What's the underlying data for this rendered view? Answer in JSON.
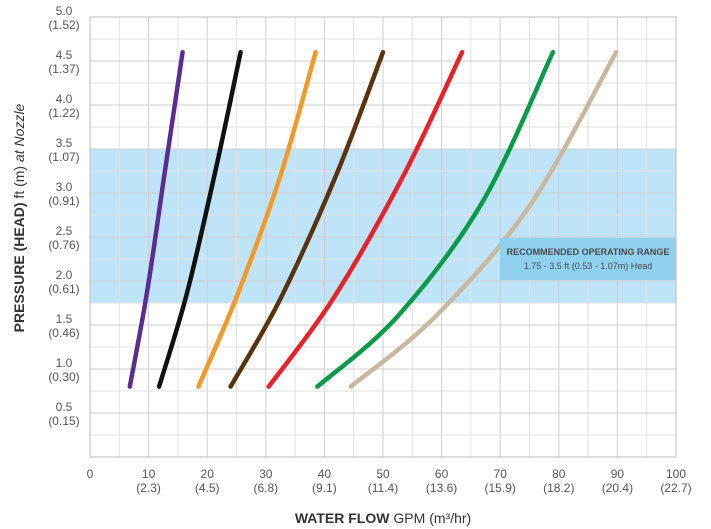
{
  "chart_data": {
    "type": "line",
    "title": "",
    "xlabel": {
      "bold": "WATER FLOW",
      "rest": "GPM (m³/hr)"
    },
    "ylabel": {
      "bold": "PRESSURE (HEAD)",
      "rest": " ft (m)",
      "italic": " at Nozzle"
    },
    "xlim": [
      0,
      100
    ],
    "ylim": [
      0,
      5
    ],
    "grid": true,
    "x_ticks": [
      {
        "value": 0,
        "main": "0",
        "sub": ""
      },
      {
        "value": 10,
        "main": "10",
        "sub": "(2.3)"
      },
      {
        "value": 20,
        "main": "20",
        "sub": "(4.5)"
      },
      {
        "value": 30,
        "main": "30",
        "sub": "(6.8)"
      },
      {
        "value": 40,
        "main": "40",
        "sub": "(9.1)"
      },
      {
        "value": 50,
        "main": "50",
        "sub": "(11.4)"
      },
      {
        "value": 60,
        "main": "60",
        "sub": "(13.6)"
      },
      {
        "value": 70,
        "main": "70",
        "sub": "(15.9)"
      },
      {
        "value": 80,
        "main": "80",
        "sub": "(18.2)"
      },
      {
        "value": 90,
        "main": "90",
        "sub": "(20.4)"
      },
      {
        "value": 100,
        "main": "100",
        "sub": "(22.7)"
      }
    ],
    "y_ticks": [
      {
        "value": 0.5,
        "main": "0.5",
        "sub": "(0.15)"
      },
      {
        "value": 1.0,
        "main": "1.0",
        "sub": "(0.30)"
      },
      {
        "value": 1.5,
        "main": "1.5",
        "sub": "(0.46)"
      },
      {
        "value": 2.0,
        "main": "2.0",
        "sub": "(0.61)"
      },
      {
        "value": 2.5,
        "main": "2.5",
        "sub": "(0.76)"
      },
      {
        "value": 3.0,
        "main": "3.0",
        "sub": "(0.91)"
      },
      {
        "value": 3.5,
        "main": "3.5",
        "sub": "(1.07)"
      },
      {
        "value": 4.0,
        "main": "4.0",
        "sub": "(1.22)"
      },
      {
        "value": 4.5,
        "main": "4.5",
        "sub": "(1.37)"
      },
      {
        "value": 5.0,
        "main": "5.0",
        "sub": "(1.52)"
      }
    ],
    "recommended_range": {
      "y_min": 1.75,
      "y_max": 3.5,
      "title": "RECOMMENDED OPERATING RANGE",
      "subtitle": "1.75 - 3.5 ft (0.53 - 1.07m) Head",
      "color": "#bfe3f7",
      "label_color": "#8fd0ef"
    },
    "series": [
      {
        "color": "#5b2d90",
        "points": [
          [
            6.8,
            0.8
          ],
          [
            9.8,
            1.9
          ],
          [
            12.9,
            3.3
          ],
          [
            15.8,
            4.6
          ]
        ]
      },
      {
        "color": "#111111",
        "points": [
          [
            11.8,
            0.8
          ],
          [
            16.5,
            1.85
          ],
          [
            21.4,
            3.25
          ],
          [
            25.7,
            4.6
          ]
        ]
      },
      {
        "color": "#ef9a2a",
        "points": [
          [
            18.5,
            0.8
          ],
          [
            25.2,
            1.85
          ],
          [
            32.5,
            3.2
          ],
          [
            38.5,
            4.6
          ]
        ]
      },
      {
        "color": "#5a3412",
        "points": [
          [
            24.0,
            0.8
          ],
          [
            32.5,
            1.8
          ],
          [
            42.0,
            3.2
          ],
          [
            50.0,
            4.6
          ]
        ]
      },
      {
        "color": "#e8212b",
        "points": [
          [
            30.5,
            0.8
          ],
          [
            41.5,
            1.8
          ],
          [
            53.5,
            3.2
          ],
          [
            63.5,
            4.6
          ]
        ]
      },
      {
        "color": "#0a9a4a",
        "points": [
          [
            38.8,
            0.8
          ],
          [
            52.5,
            1.6
          ],
          [
            67.0,
            2.9
          ],
          [
            79.0,
            4.6
          ]
        ]
      },
      {
        "color": "#c9b8a0",
        "points": [
          [
            44.5,
            0.8
          ],
          [
            59.0,
            1.6
          ],
          [
            75.0,
            2.85
          ],
          [
            89.8,
            4.6
          ]
        ]
      }
    ]
  }
}
